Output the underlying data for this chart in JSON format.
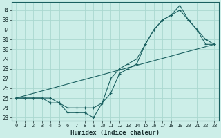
{
  "xlabel": "Humidex (Indice chaleur)",
  "background_color": "#cceee8",
  "line_color": "#1a6060",
  "grid_color": "#aad8d0",
  "xlim": [
    -0.5,
    23.5
  ],
  "ylim": [
    22.7,
    34.8
  ],
  "yticks": [
    23,
    24,
    25,
    26,
    27,
    28,
    29,
    30,
    31,
    32,
    33,
    34
  ],
  "xticks": [
    0,
    1,
    2,
    3,
    4,
    5,
    6,
    7,
    8,
    9,
    10,
    11,
    12,
    13,
    14,
    15,
    16,
    17,
    18,
    19,
    20,
    21,
    22,
    23
  ],
  "series": [
    {
      "x": [
        0,
        1,
        2,
        3,
        4,
        5,
        6,
        7,
        8,
        9,
        10,
        11,
        12,
        13,
        14,
        15,
        16,
        17,
        18,
        19,
        20,
        21,
        22,
        23
      ],
      "y": [
        25,
        25,
        25,
        25,
        25,
        24.5,
        24,
        24,
        24,
        24,
        24.5,
        27,
        28,
        28.5,
        29,
        30.5,
        32,
        33,
        33.5,
        34.5,
        33,
        32,
        30.5,
        30.5
      ],
      "marker": true
    },
    {
      "x": [
        0,
        1,
        2,
        3,
        4,
        5,
        6,
        7,
        8,
        9,
        10,
        11,
        12,
        13,
        14,
        15,
        16,
        17,
        18,
        19,
        20,
        21,
        22,
        23
      ],
      "y": [
        25,
        25,
        25,
        25,
        24.5,
        24.5,
        23.5,
        23.5,
        23.5,
        23,
        24.5,
        25.5,
        27.5,
        28,
        28.5,
        30.5,
        32,
        33,
        33.5,
        34,
        33,
        32,
        31,
        30.5
      ],
      "marker": true
    },
    {
      "x": [
        0,
        23
      ],
      "y": [
        25,
        30.5
      ],
      "marker": false
    }
  ]
}
